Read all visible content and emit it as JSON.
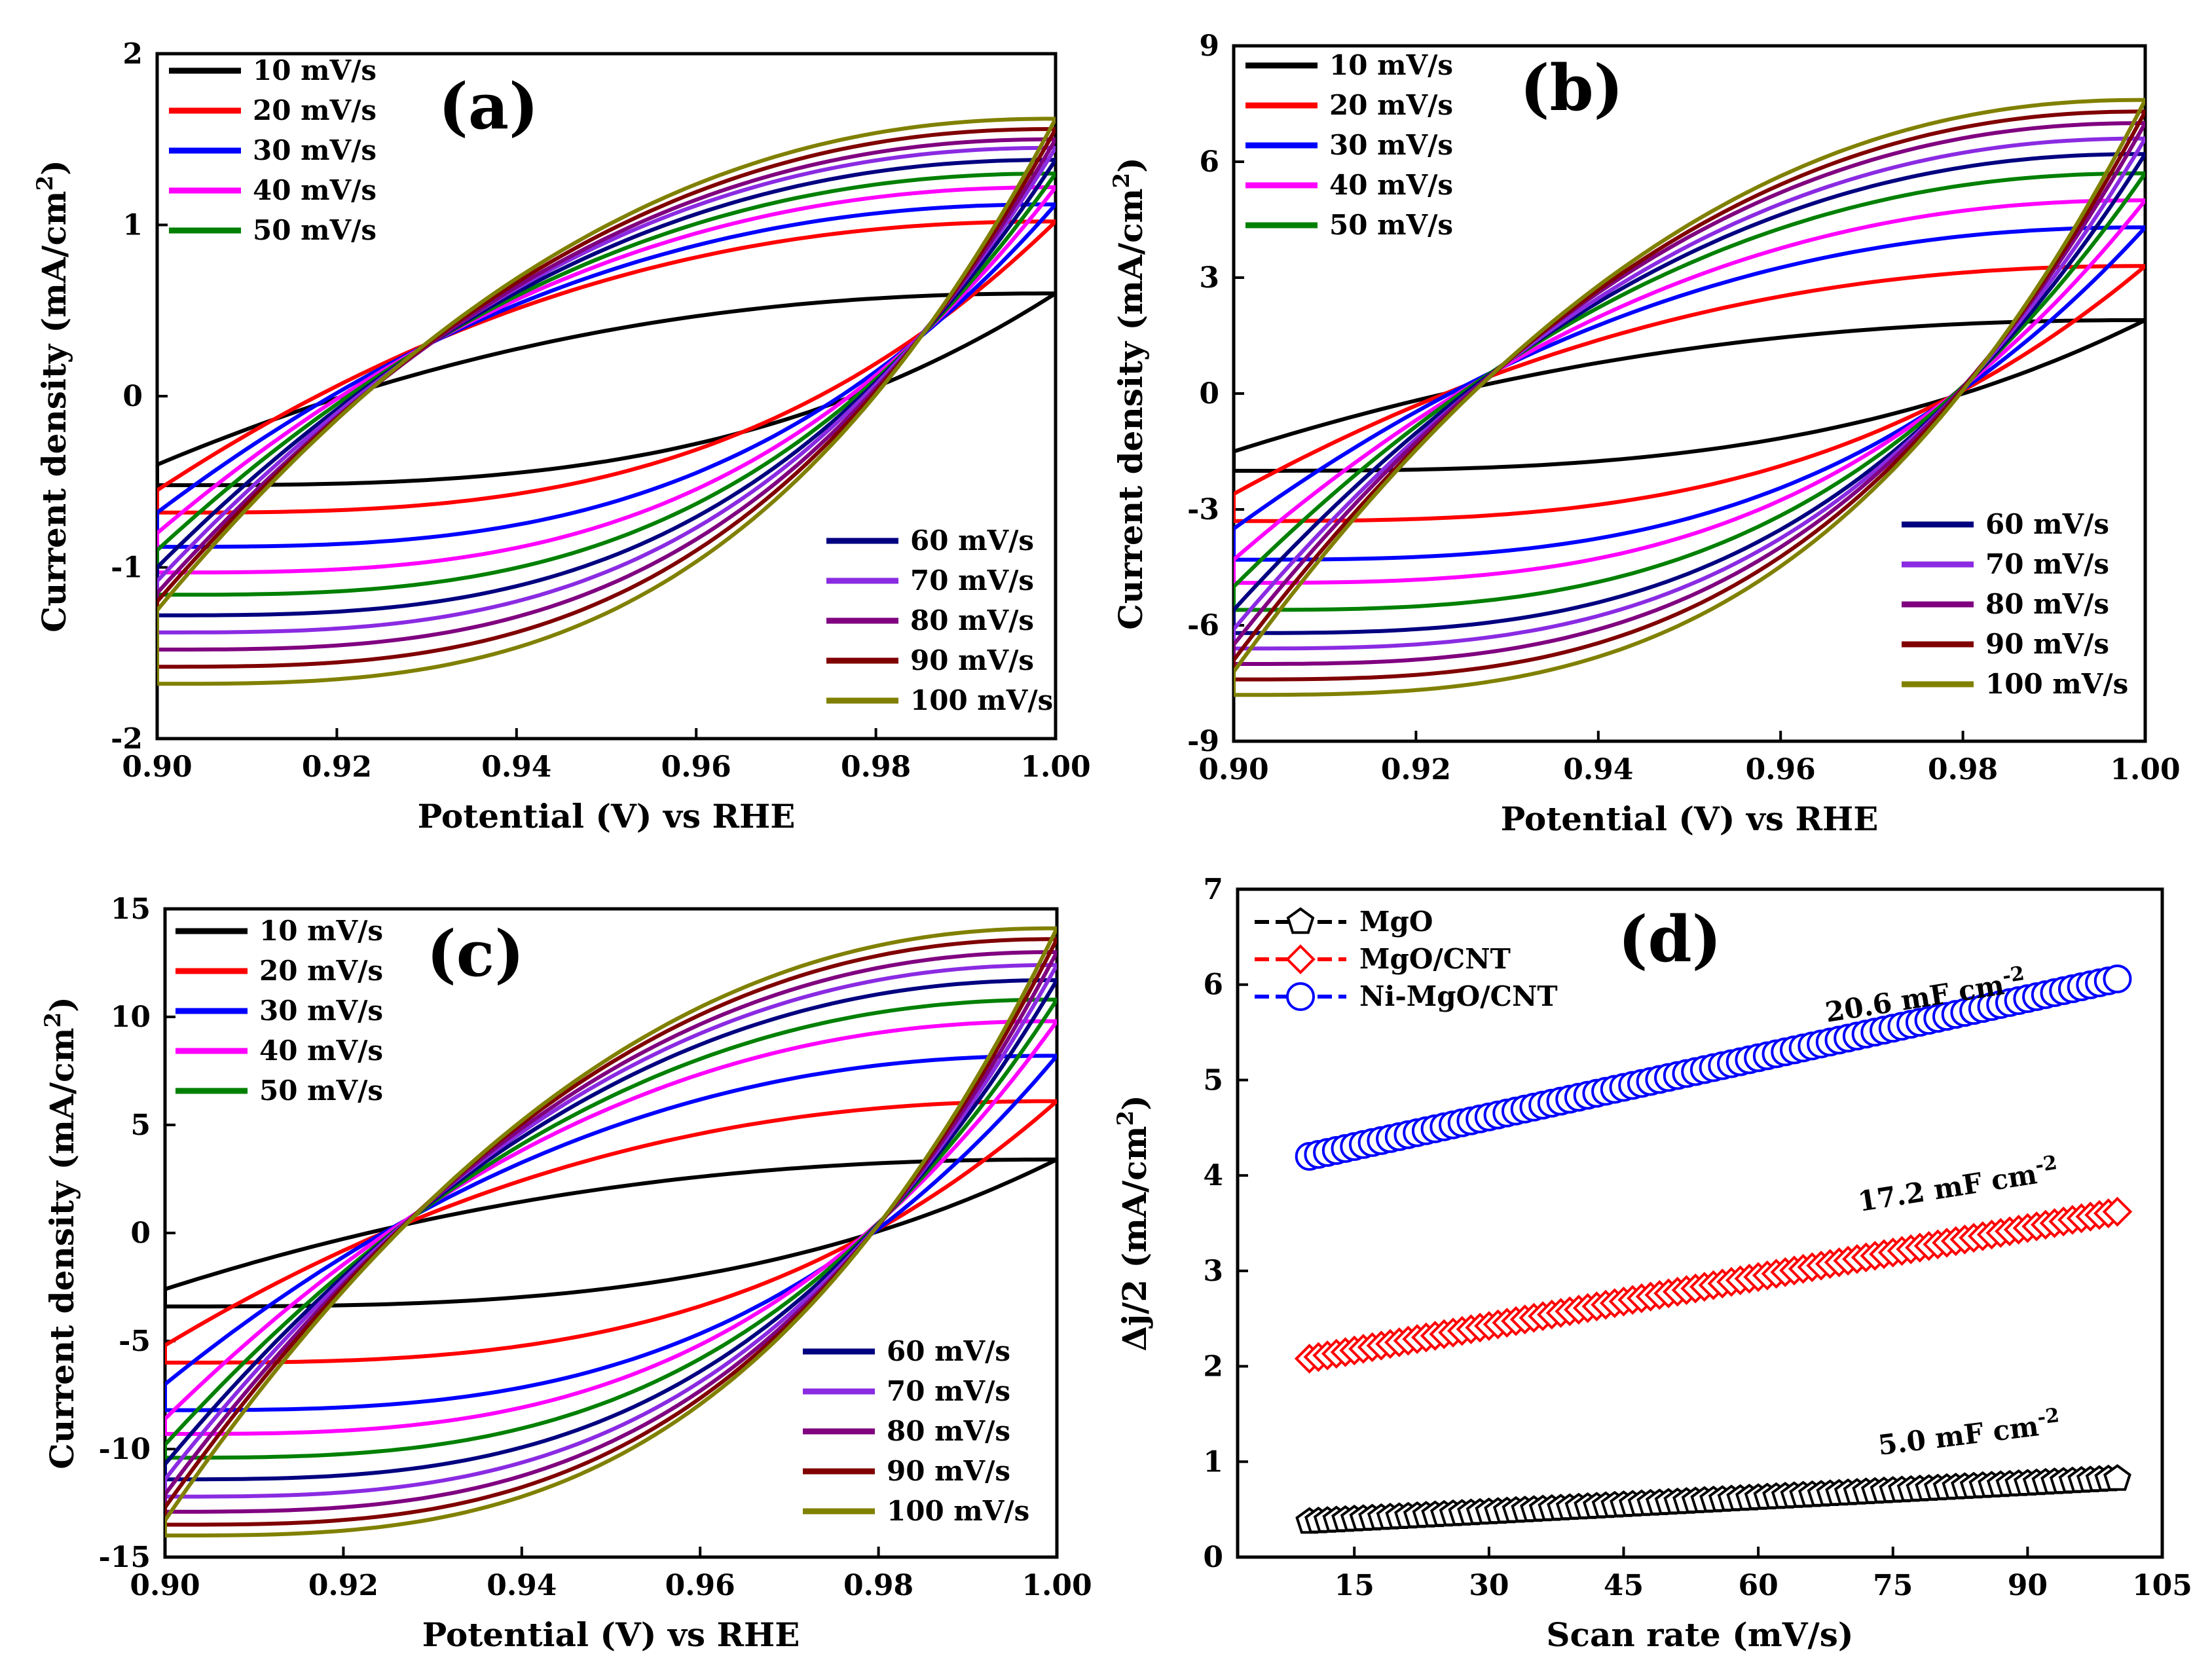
{
  "chart_data": [
    {
      "type": "line",
      "panel_label": "(a)",
      "xlabel": "Potential (V) vs RHE",
      "ylabel": "Current density (mA/cm",
      "ylabel_sup": "2",
      "ylabel_end": ")",
      "xlim": [
        0.9,
        1.0
      ],
      "ylim": [
        -2,
        2
      ],
      "xticks": [
        0.9,
        0.92,
        0.94,
        0.96,
        0.98,
        1.0
      ],
      "xtick_labels": [
        "0.90",
        "0.92",
        "0.94",
        "0.96",
        "0.98",
        "1.00"
      ],
      "yticks": [
        -2,
        -1,
        0,
        1,
        2
      ],
      "ytick_labels": [
        "-2",
        "-1",
        "0",
        "1",
        "2"
      ],
      "cycle_voltammetry": {
        "curvature": 0.5,
        "low_end": [
          -0.4,
          -0.55,
          -0.68,
          -0.8,
          -0.9,
          -1.0,
          -1.08,
          -1.15,
          -1.2,
          -1.25
        ]
      },
      "legend_top_left": true,
      "series": [
        {
          "name": "10 mV/s",
          "color": "#000000",
          "cathodic_start": -0.52,
          "anodic_end": 0.6,
          "vertex_low": -0.4
        },
        {
          "name": "20 mV/s",
          "color": "#ff0000",
          "cathodic_start": -0.68,
          "anodic_end": 1.02,
          "vertex_low": -0.55
        },
        {
          "name": "30 mV/s",
          "color": "#0000ff",
          "cathodic_start": -0.88,
          "anodic_end": 1.12,
          "vertex_low": -0.68
        },
        {
          "name": "40 mV/s",
          "color": "#ff00ff",
          "cathodic_start": -1.03,
          "anodic_end": 1.22,
          "vertex_low": -0.8
        },
        {
          "name": "50 mV/s",
          "color": "#008000",
          "cathodic_start": -1.16,
          "anodic_end": 1.3,
          "vertex_low": -0.9
        },
        {
          "name": "60 mV/s",
          "color": "#000080",
          "cathodic_start": -1.28,
          "anodic_end": 1.38,
          "vertex_low": -1.0
        },
        {
          "name": "70 mV/s",
          "color": "#8a2be2",
          "cathodic_start": -1.38,
          "anodic_end": 1.45,
          "vertex_low": -1.08
        },
        {
          "name": "80 mV/s",
          "color": "#800080",
          "cathodic_start": -1.48,
          "anodic_end": 1.5,
          "vertex_low": -1.15
        },
        {
          "name": "90 mV/s",
          "color": "#800000",
          "cathodic_start": -1.58,
          "anodic_end": 1.56,
          "vertex_low": -1.2
        },
        {
          "name": "100 mV/s",
          "color": "#808000",
          "cathodic_start": -1.68,
          "anodic_end": 1.62,
          "vertex_low": -1.25
        }
      ]
    },
    {
      "type": "line",
      "panel_label": "(b)",
      "xlabel": "Potential (V) vs RHE",
      "ylabel": "Current density (mA/cm",
      "ylabel_sup": "2",
      "ylabel_end": ")",
      "xlim": [
        0.9,
        1.0
      ],
      "ylim": [
        -9,
        9
      ],
      "xticks": [
        0.9,
        0.92,
        0.94,
        0.96,
        0.98,
        1.0
      ],
      "xtick_labels": [
        "0.90",
        "0.92",
        "0.94",
        "0.96",
        "0.98",
        "1.00"
      ],
      "yticks": [
        -9,
        -6,
        -3,
        0,
        3,
        6,
        9
      ],
      "ytick_labels": [
        "-9",
        "-6",
        "-3",
        "0",
        "3",
        "6",
        "9"
      ],
      "legend_top_left": true,
      "series": [
        {
          "name": "10 mV/s",
          "color": "#000000",
          "cathodic_start": -2.0,
          "anodic_end": 1.9,
          "vertex_low": -1.5
        },
        {
          "name": "20 mV/s",
          "color": "#ff0000",
          "cathodic_start": -3.3,
          "anodic_end": 3.3,
          "vertex_low": -2.6
        },
        {
          "name": "30 mV/s",
          "color": "#0000ff",
          "cathodic_start": -4.3,
          "anodic_end": 4.3,
          "vertex_low": -3.5
        },
        {
          "name": "40 mV/s",
          "color": "#ff00ff",
          "cathodic_start": -4.9,
          "anodic_end": 5.0,
          "vertex_low": -4.3
        },
        {
          "name": "50 mV/s",
          "color": "#008000",
          "cathodic_start": -5.6,
          "anodic_end": 5.7,
          "vertex_low": -5.0
        },
        {
          "name": "60 mV/s",
          "color": "#000080",
          "cathodic_start": -6.2,
          "anodic_end": 6.2,
          "vertex_low": -5.6
        },
        {
          "name": "70 mV/s",
          "color": "#8a2be2",
          "cathodic_start": -6.6,
          "anodic_end": 6.6,
          "vertex_low": -6.1
        },
        {
          "name": "80 mV/s",
          "color": "#800080",
          "cathodic_start": -7.0,
          "anodic_end": 7.0,
          "vertex_low": -6.5
        },
        {
          "name": "90 mV/s",
          "color": "#800000",
          "cathodic_start": -7.4,
          "anodic_end": 7.3,
          "vertex_low": -6.9
        },
        {
          "name": "100 mV/s",
          "color": "#808000",
          "cathodic_start": -7.8,
          "anodic_end": 7.6,
          "vertex_low": -7.2
        }
      ]
    },
    {
      "type": "line",
      "panel_label": "(c)",
      "xlabel": "Potential (V) vs RHE",
      "ylabel": "Current density (mA/cm",
      "ylabel_sup": "2",
      "ylabel_end": ")",
      "xlim": [
        0.9,
        1.0
      ],
      "ylim": [
        -15,
        15
      ],
      "xticks": [
        0.9,
        0.92,
        0.94,
        0.96,
        0.98,
        1.0
      ],
      "xtick_labels": [
        "0.90",
        "0.92",
        "0.94",
        "0.96",
        "0.98",
        "1.00"
      ],
      "yticks": [
        -15,
        -10,
        -5,
        0,
        5,
        10,
        15
      ],
      "ytick_labels": [
        "-15",
        "-10",
        "-5",
        "0",
        "5",
        "10",
        "15"
      ],
      "legend_top_left": true,
      "series": [
        {
          "name": "10 mV/s",
          "color": "#000000",
          "cathodic_start": -3.4,
          "anodic_end": 3.4,
          "vertex_low": -2.6
        },
        {
          "name": "20 mV/s",
          "color": "#ff0000",
          "cathodic_start": -6.0,
          "anodic_end": 6.1,
          "vertex_low": -5.2
        },
        {
          "name": "30 mV/s",
          "color": "#0000ff",
          "cathodic_start": -8.2,
          "anodic_end": 8.2,
          "vertex_low": -7.0
        },
        {
          "name": "40 mV/s",
          "color": "#ff00ff",
          "cathodic_start": -9.3,
          "anodic_end": 9.8,
          "vertex_low": -8.6
        },
        {
          "name": "50 mV/s",
          "color": "#008000",
          "cathodic_start": -10.4,
          "anodic_end": 10.8,
          "vertex_low": -9.8
        },
        {
          "name": "60 mV/s",
          "color": "#000080",
          "cathodic_start": -11.4,
          "anodic_end": 11.7,
          "vertex_low": -10.7
        },
        {
          "name": "70 mV/s",
          "color": "#8a2be2",
          "cathodic_start": -12.2,
          "anodic_end": 12.4,
          "vertex_low": -11.4
        },
        {
          "name": "80 mV/s",
          "color": "#800080",
          "cathodic_start": -12.9,
          "anodic_end": 13.0,
          "vertex_low": -12.1
        },
        {
          "name": "90 mV/s",
          "color": "#800000",
          "cathodic_start": -13.5,
          "anodic_end": 13.6,
          "vertex_low": -12.7
        },
        {
          "name": "100 mV/s",
          "color": "#808000",
          "cathodic_start": -14.0,
          "anodic_end": 14.1,
          "vertex_low": -13.3
        }
      ]
    },
    {
      "type": "scatter",
      "panel_label": "(d)",
      "xlabel": "Scan rate (mV/s)",
      "ylabel": "Δj/2 (mA/cm",
      "ylabel_sup": "2",
      "ylabel_end": ")",
      "xlim": [
        2,
        105
      ],
      "ylim": [
        0,
        7
      ],
      "xticks": [
        15,
        30,
        45,
        60,
        75,
        90,
        105
      ],
      "xtick_labels": [
        "15",
        "30",
        "45",
        "60",
        "75",
        "90",
        "105"
      ],
      "yticks": [
        0,
        1,
        2,
        3,
        4,
        5,
        6,
        7
      ],
      "ytick_labels": [
        "0",
        "1",
        "2",
        "3",
        "4",
        "5",
        "6",
        "7"
      ],
      "x_range_points": [
        10,
        100
      ],
      "series": [
        {
          "name": "MgO",
          "color": "#000000",
          "marker": "pentagon",
          "y_start": 0.37,
          "y_end": 0.82,
          "annotation": "5.0 mF cm",
          "annotation_sup": "-2"
        },
        {
          "name": "MgO/CNT",
          "color": "#ff0000",
          "marker": "diamond",
          "y_start": 2.08,
          "y_end": 3.62,
          "annotation": "17.2 mF cm",
          "annotation_sup": "-2"
        },
        {
          "name": "Ni-MgO/CNT",
          "color": "#0000ff",
          "marker": "circle",
          "y_start": 4.2,
          "y_end": 6.06,
          "annotation": "20.6 mF cm",
          "annotation_sup": "-2"
        }
      ]
    }
  ]
}
